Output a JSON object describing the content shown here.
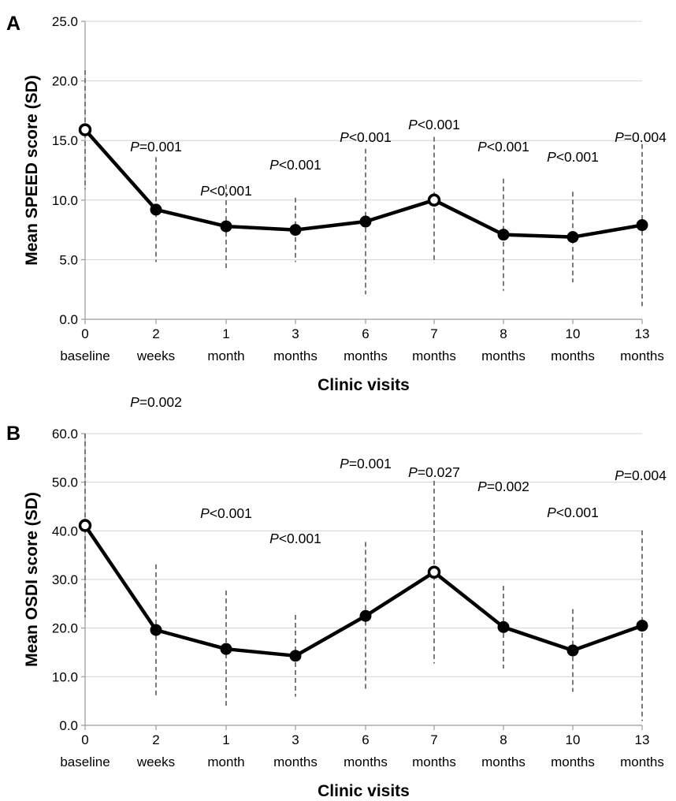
{
  "chart_data": [
    {
      "type": "line",
      "panel_label": "A",
      "ylabel": "Mean SPEED score (SD)",
      "xlabel": "Clinic visits",
      "ylim": [
        0,
        25
      ],
      "y_ticks": [
        "0.0",
        "5.0",
        "10.0",
        "15.0",
        "20.0",
        "25.0"
      ],
      "grid": true,
      "categories": [
        {
          "num": "0",
          "unit": "baseline"
        },
        {
          "num": "2",
          "unit": "weeks"
        },
        {
          "num": "1",
          "unit": "month"
        },
        {
          "num": "3",
          "unit": "months"
        },
        {
          "num": "6",
          "unit": "months"
        },
        {
          "num": "7",
          "unit": "months"
        },
        {
          "num": "8",
          "unit": "months"
        },
        {
          "num": "10",
          "unit": "months"
        },
        {
          "num": "13",
          "unit": "months"
        }
      ],
      "values": [
        15.9,
        9.2,
        7.8,
        7.5,
        8.2,
        10.0,
        7.1,
        6.9,
        7.9
      ],
      "sd": [
        5.0,
        4.4,
        3.5,
        2.7,
        6.1,
        5.3,
        4.7,
        3.8,
        6.8
      ],
      "open_markers": [
        0,
        5
      ],
      "p_values": [
        null,
        {
          "p": "P",
          "rest": "=0.001"
        },
        {
          "p": "P",
          "rest": "<0.001"
        },
        {
          "p": "P",
          "rest": "<0.001"
        },
        {
          "p": "P",
          "rest": "<0.001"
        },
        {
          "p": "P",
          "rest": "<0.001"
        },
        {
          "p": "P",
          "rest": "<0.001"
        },
        {
          "p": "P",
          "rest": "<0.001"
        },
        {
          "p": "P",
          "rest": "=0.004"
        }
      ]
    },
    {
      "type": "line",
      "panel_label": "B",
      "ylabel": "Mean OSDI score (SD)",
      "xlabel": "Clinic visits",
      "ylim": [
        0,
        60
      ],
      "y_ticks": [
        "0.0",
        "10.0",
        "20.0",
        "30.0",
        "40.0",
        "50.0",
        "60.0"
      ],
      "grid": true,
      "categories": [
        {
          "num": "0",
          "unit": "baseline"
        },
        {
          "num": "2",
          "unit": "weeks"
        },
        {
          "num": "1",
          "unit": "month"
        },
        {
          "num": "3",
          "unit": "months"
        },
        {
          "num": "6",
          "unit": "months"
        },
        {
          "num": "7",
          "unit": "months"
        },
        {
          "num": "8",
          "unit": "months"
        },
        {
          "num": "10",
          "unit": "months"
        },
        {
          "num": "13",
          "unit": "months"
        }
      ],
      "values": [
        41.1,
        19.6,
        15.7,
        14.3,
        22.5,
        31.5,
        20.2,
        15.4,
        20.5
      ],
      "sd": [
        18.9,
        13.5,
        12.0,
        8.4,
        15.2,
        18.8,
        8.5,
        8.5,
        19.6
      ],
      "open_markers": [
        0,
        5
      ],
      "p_values": [
        null,
        {
          "p": "P",
          "rest": "=0.002"
        },
        {
          "p": "P",
          "rest": "<0.001"
        },
        {
          "p": "P",
          "rest": "<0.001"
        },
        {
          "p": "P",
          "rest": "=0.001"
        },
        {
          "p": "P",
          "rest": "=0.027"
        },
        {
          "p": "P",
          "rest": "=0.002"
        },
        {
          "p": "P",
          "rest": "<0.001"
        },
        {
          "p": "P",
          "rest": "=0.004"
        }
      ]
    }
  ]
}
